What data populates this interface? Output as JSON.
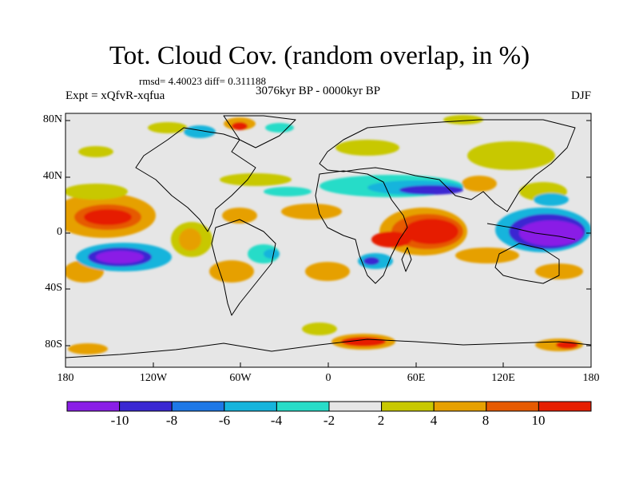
{
  "title": "Tot. Cloud Cov. (random overlap, in %)",
  "stats_text": "rmsd= 4.40023 diff= 0.311188",
  "period_text": "3076kyr BP - 0000kyr BP",
  "experiment_text": "Expt = xQfvR-xqfua",
  "season_text": "DJF",
  "map": {
    "projection": "cylindrical-equidistant",
    "lon_range": [
      -180,
      180
    ],
    "lat_range": [
      -90,
      90
    ],
    "x_ticks": [
      "180",
      "120W",
      "60W",
      "0",
      "60E",
      "120E",
      "180"
    ],
    "y_ticks": [
      "80N",
      "40N",
      "0",
      "40S",
      "80S"
    ],
    "background_color": "#e6e6e6",
    "coastline_color": "#000000"
  },
  "colorbar": {
    "tick_labels": [
      "-10",
      "-8",
      "-6",
      "-4",
      "-2",
      "2",
      "4",
      "8",
      "10"
    ],
    "colors": [
      "#8a1ee6",
      "#3a28d2",
      "#1e78e6",
      "#16b4dc",
      "#28dcc8",
      "#e6e6e6",
      "#c8c800",
      "#e6a000",
      "#e65a00",
      "#e61e00"
    ]
  }
}
